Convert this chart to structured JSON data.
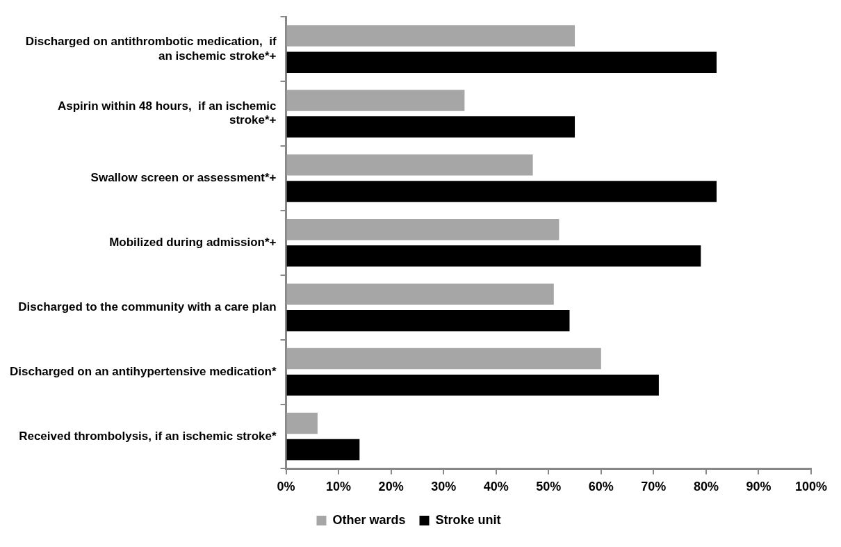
{
  "chart_data": {
    "type": "bar",
    "orientation": "horizontal",
    "categories": [
      "Discharged on antithrombotic medication,  if an ischemic stroke*+",
      "Aspirin within 48 hours,  if an ischemic stroke*+",
      "Swallow screen or assessment*+",
      "Mobilized during admission*+",
      "Discharged to the community with a care plan",
      "Discharged on an antihypertensive medication*",
      "Received thrombolysis, if an ischemic stroke*"
    ],
    "series": [
      {
        "name": "Other wards",
        "color": "#a6a6a6",
        "values": [
          55,
          34,
          47,
          52,
          51,
          60,
          6
        ]
      },
      {
        "name": "Stroke unit",
        "color": "#000000",
        "values": [
          82,
          55,
          82,
          79,
          54,
          71,
          14
        ]
      }
    ],
    "xlim": [
      0,
      100
    ],
    "xticks": [
      {
        "value": 0,
        "label": "0%"
      },
      {
        "value": 10,
        "label": "10%"
      },
      {
        "value": 20,
        "label": "20%"
      },
      {
        "value": 30,
        "label": "30%"
      },
      {
        "value": 40,
        "label": "40%"
      },
      {
        "value": 50,
        "label": "50%"
      },
      {
        "value": 60,
        "label": "60%"
      },
      {
        "value": 70,
        "label": "70%"
      },
      {
        "value": 80,
        "label": "80%"
      },
      {
        "value": 90,
        "label": "90%"
      },
      {
        "value": 100,
        "label": "100%"
      }
    ],
    "grid": false,
    "legend": "bottom"
  }
}
